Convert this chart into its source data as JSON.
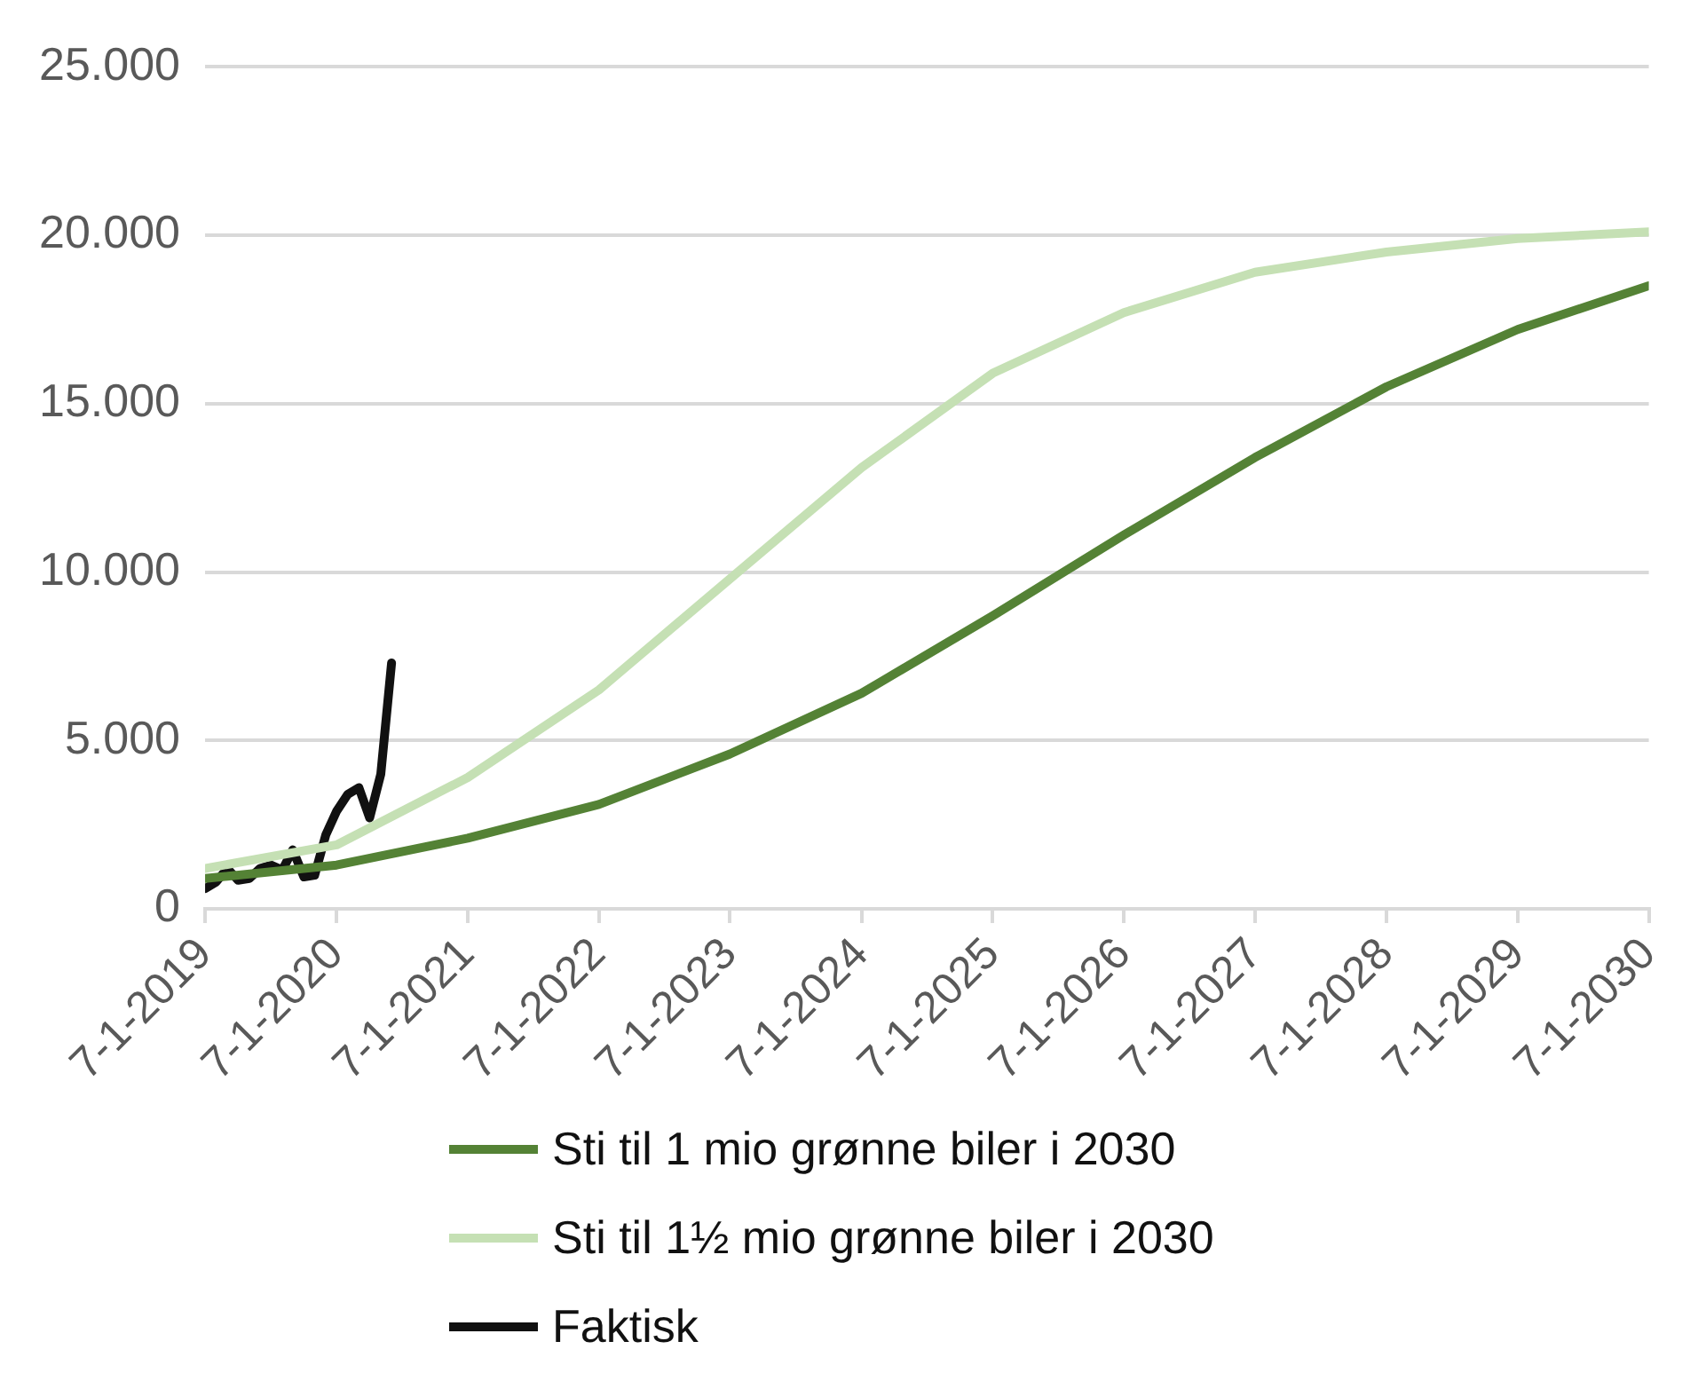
{
  "chart_data": {
    "type": "line",
    "x": [
      "2019-07-01",
      "2020-07-01",
      "2021-07-01",
      "2022-07-01",
      "2023-07-01",
      "2024-07-01",
      "2025-07-01",
      "2026-07-01",
      "2027-07-01",
      "2028-07-01",
      "2029-07-01",
      "2030-07-01"
    ],
    "series": [
      {
        "name": "Sti til 1 mio grønne biler i 2030",
        "color": "#548235",
        "values": [
          900,
          1300,
          2100,
          3100,
          4600,
          6400,
          8700,
          11100,
          13400,
          15500,
          17200,
          18500
        ]
      },
      {
        "name": "Sti til 1½ mio grønne biler i 2030",
        "color": "#c5e0b4",
        "values": [
          1200,
          1900,
          3900,
          6500,
          9800,
          13100,
          15900,
          17700,
          18900,
          19500,
          19900,
          20100
        ]
      },
      {
        "name": "Faktisk",
        "color": "#111111",
        "x": [
          "2019-07-01",
          "2019-08-01",
          "2019-09-01",
          "2019-10-01",
          "2019-11-01",
          "2019-12-01",
          "2020-01-01",
          "2020-02-01",
          "2020-03-01",
          "2020-04-01",
          "2020-05-01",
          "2020-06-01",
          "2020-07-01",
          "2020-08-01",
          "2020-09-01",
          "2020-10-01",
          "2020-11-01",
          "2020-12-01"
        ],
        "values": [
          600,
          800,
          1200,
          850,
          900,
          1200,
          1300,
          1150,
          1750,
          950,
          1000,
          2200,
          2900,
          3400,
          3600,
          2700,
          4000,
          7300
        ]
      }
    ],
    "xlim": [
      "2019-07-01",
      "2030-07-01"
    ],
    "xticks": [
      {
        "value": "2019-07-01",
        "label": "7-1-2019"
      },
      {
        "value": "2020-07-01",
        "label": "7-1-2020"
      },
      {
        "value": "2021-07-01",
        "label": "7-1-2021"
      },
      {
        "value": "2022-07-01",
        "label": "7-1-2022"
      },
      {
        "value": "2023-07-01",
        "label": "7-1-2023"
      },
      {
        "value": "2024-07-01",
        "label": "7-1-2024"
      },
      {
        "value": "2025-07-01",
        "label": "7-1-2025"
      },
      {
        "value": "2026-07-01",
        "label": "7-1-2026"
      },
      {
        "value": "2027-07-01",
        "label": "7-1-2027"
      },
      {
        "value": "2028-07-01",
        "label": "7-1-2028"
      },
      {
        "value": "2029-07-01",
        "label": "7-1-2029"
      },
      {
        "value": "2030-07-01",
        "label": "7-1-2030"
      }
    ],
    "ylim": [
      0,
      25000
    ],
    "yticks": [
      {
        "value": 0,
        "label": "0"
      },
      {
        "value": 5000,
        "label": "5.000"
      },
      {
        "value": 10000,
        "label": "10.000"
      },
      {
        "value": 15000,
        "label": "15.000"
      },
      {
        "value": 20000,
        "label": "20.000"
      },
      {
        "value": 25000,
        "label": "25.000"
      }
    ],
    "grid": "y",
    "legend": "bottom",
    "marker": "none",
    "line_style": "solid"
  }
}
